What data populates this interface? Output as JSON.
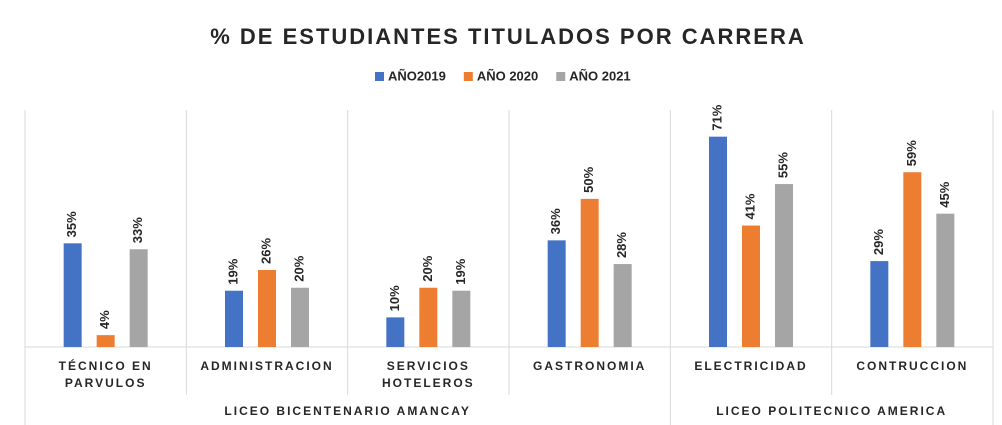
{
  "chart_data": {
    "type": "bar",
    "title": "% DE ESTUDIANTES TITULADOS POR CARRERA",
    "categories": [
      "TÉCNICO EN PARVULOS",
      "ADMINISTRACION",
      "SERVICIOS HOTELEROS",
      "GASTRONOMIA",
      "ELECTRICIDAD",
      "CONTRUCCION"
    ],
    "groups": [
      {
        "name": "LICEO BICENTENARIO AMANCAY",
        "size": 4
      },
      {
        "name": "LICEO POLITECNICO AMERICA",
        "size": 2
      }
    ],
    "series": [
      {
        "name": "AÑO2019",
        "color": "#4472c4",
        "values": [
          35,
          19,
          10,
          36,
          71,
          29
        ],
        "value_labels": [
          "35%",
          "19%",
          "10%",
          "36%",
          "71%",
          "29%"
        ]
      },
      {
        "name": "AÑO 2020",
        "color": "#ed7d31",
        "values": [
          4,
          26,
          20,
          50,
          41,
          59
        ],
        "value_labels": [
          "4%",
          "26%",
          "20%",
          "50%",
          "41%",
          "59%"
        ]
      },
      {
        "name": "AÑO 2021",
        "color": "#a5a5a5",
        "values": [
          33,
          20,
          19,
          28,
          55,
          45
        ],
        "value_labels": [
          "33%",
          "20%",
          "19%",
          "28%",
          "55%",
          "45%"
        ]
      }
    ],
    "ylim": [
      0,
      80
    ]
  }
}
